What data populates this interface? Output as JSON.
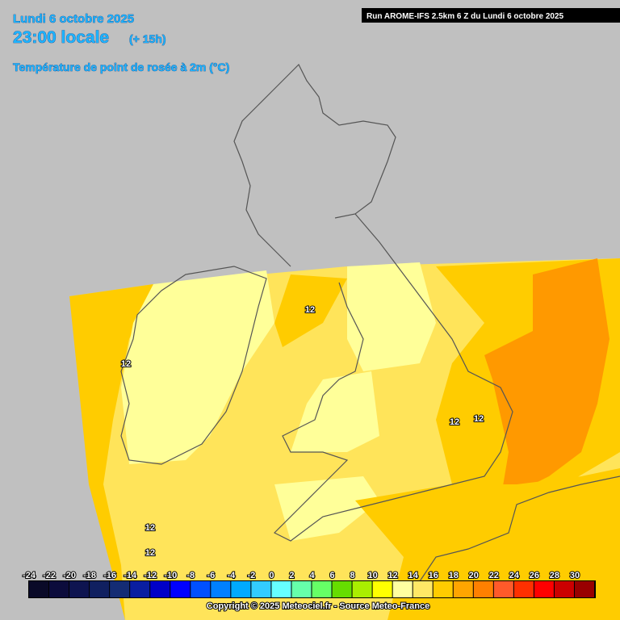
{
  "header": {
    "date": "Lundi 6 octobre 2025",
    "time": "23:00 locale",
    "lead": "(+ 15h)",
    "parameter": "Température de point de rosée à 2m (°C)",
    "run": "Run AROME-IFS 2.5km 6 Z du Lundi 6 octobre 2025"
  },
  "map_labels": [
    12,
    12,
    12,
    12,
    12,
    12
  ],
  "legend": {
    "labels": [
      -24,
      -22,
      -20,
      -18,
      -16,
      -14,
      -12,
      -10,
      -8,
      -6,
      -4,
      -2,
      0,
      2,
      4,
      6,
      8,
      10,
      12,
      14,
      16,
      18,
      20,
      22,
      24,
      26,
      28,
      30
    ],
    "colors": [
      "#0a0a28",
      "#0c0c3c",
      "#0e1450",
      "#102060",
      "#142c74",
      "#0a1ea0",
      "#0000c8",
      "#0000ff",
      "#0050ff",
      "#0080ff",
      "#00aaff",
      "#33ccff",
      "#66ffff",
      "#66ffaa",
      "#66ff66",
      "#66dd00",
      "#aaee00",
      "#ffff00",
      "#ffffa0",
      "#ffe866",
      "#ffcc00",
      "#ffa500",
      "#ff8000",
      "#ff5a2a",
      "#ff3000",
      "#ff0000",
      "#cc0000",
      "#990000"
    ]
  },
  "footer": {
    "copyright": "Copyright © 2025 Meteociel.fr - Source Meteo-France"
  }
}
